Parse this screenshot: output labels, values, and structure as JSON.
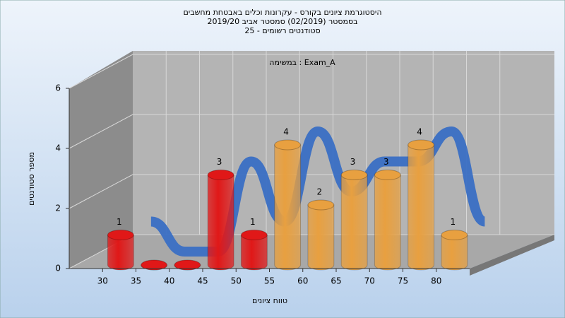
{
  "chart_data": {
    "type": "histogram",
    "title": "היסטוגרמת ציונים בקורס - עקרונות וכלים באבטחת מחשבים",
    "subtitle": "בסמסטר  (02/2019)  סמסטר אביב 2019/20",
    "subtitle2": "סטודנטים רשומים - 25",
    "annotation": "במשימה : Exam_A",
    "xlabel": "טווח ציונים",
    "ylabel": "מספר סטודנטים",
    "bins": [
      30,
      35,
      40,
      45,
      50,
      55,
      60,
      65,
      70,
      75,
      80,
      85
    ],
    "values": [
      1,
      0,
      0,
      3,
      1,
      4,
      2,
      3,
      3,
      4,
      1
    ],
    "colors": [
      "#e01818",
      "#e01818",
      "#e01818",
      "#e01818",
      "#e01818",
      "#e8a040",
      "#e8a040",
      "#e8a040",
      "#e8a040",
      "#e8a040",
      "#e8a040"
    ],
    "line_color": "#3a6fc4",
    "xlim": [
      25,
      85
    ],
    "xticks": [
      30,
      35,
      40,
      45,
      50,
      55,
      60,
      65,
      70,
      75,
      80
    ],
    "ylim": [
      0,
      6
    ],
    "yticks": [
      0,
      2,
      4,
      6
    ],
    "grid": true
  }
}
